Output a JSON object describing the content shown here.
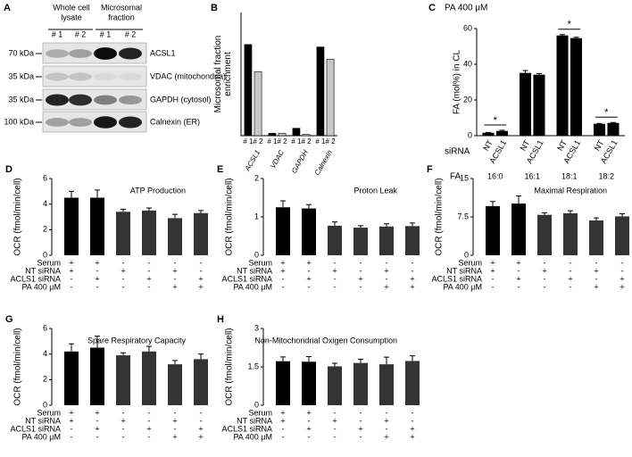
{
  "blot": {
    "panel": "A",
    "groups": [
      [
        "Whole cell",
        "lysate"
      ],
      [
        "Microsomal",
        "fraction"
      ]
    ],
    "lanes": [
      "# 1",
      "# 2",
      "# 1",
      "# 2"
    ],
    "rows": [
      {
        "marker": "70 kDa",
        "protein": "ACSL1"
      },
      {
        "marker": "35 kDa",
        "protein": "VDAC (mitochondria)"
      },
      {
        "marker": "35 kDa",
        "protein": "GAPDH (cytosol)"
      },
      {
        "marker": "100 kDa",
        "protein": "Calnexin (ER)"
      }
    ]
  },
  "chart_data": [
    {
      "type": "grouped_bar",
      "panel": "B",
      "y_label": [
        "Microsomal fraction",
        "enrichment"
      ],
      "categories": [
        "ACSL1",
        "VDAC",
        "GAPDH",
        "Calnexin"
      ],
      "series": [
        {
          "name": "# 1",
          "color": "#000000",
          "values": [
            3.7,
            0.1,
            0.3,
            3.6
          ]
        },
        {
          "name": "# 2",
          "color": "#c8c8c8",
          "values": [
            2.6,
            0.1,
            0.05,
            3.1
          ]
        }
      ],
      "ylim": [
        0,
        5
      ]
    },
    {
      "type": "grouped_bar",
      "panel": "C",
      "title": "PA 400 μM",
      "y_label": [
        "FA (mol%) in CL"
      ],
      "series_label": "siRNA",
      "category_label": "FA",
      "categories": [
        "16:0",
        "16:1",
        "18:1",
        "18:2"
      ],
      "series": [
        {
          "name": "NT",
          "color": "#000000",
          "values": [
            1.5,
            35,
            56,
            6.5
          ],
          "errors": [
            0.3,
            1.5,
            0.6,
            0.4
          ]
        },
        {
          "name": "ACSL1",
          "color": "#000000",
          "values": [
            2.5,
            34,
            54.5,
            7
          ],
          "errors": [
            0.5,
            0.8,
            0.6,
            0.4
          ]
        }
      ],
      "significance": [
        "*",
        null,
        "*",
        "*"
      ],
      "ylim": [
        0,
        60
      ],
      "yticks": [
        0,
        20,
        40,
        60
      ]
    },
    {
      "type": "bar",
      "panel": "D",
      "title": "ATP Production",
      "y_label": [
        "OCR (fmol/min/cell)"
      ],
      "values": [
        4.5,
        4.5,
        3.4,
        3.5,
        2.9,
        3.3
      ],
      "errors": [
        0.5,
        0.6,
        0.2,
        0.2,
        0.3,
        0.2
      ],
      "colors": [
        "#000000",
        "#000000",
        "#333333",
        "#333333",
        "#333333",
        "#333333"
      ],
      "condition_labels": [
        "Serum",
        "NT siRNA",
        "ACLS1 siRNA",
        "PA 400 μM"
      ],
      "conditions": [
        [
          "+",
          "+",
          "-",
          "-",
          "-",
          "-"
        ],
        [
          "+",
          "-",
          "+",
          "-",
          "+",
          "-"
        ],
        [
          "-",
          "+",
          "-",
          "+",
          "-",
          "+"
        ],
        [
          "-",
          "-",
          "-",
          "-",
          "+",
          "+"
        ]
      ],
      "ylim": [
        0,
        6
      ],
      "yticks": [
        0,
        2,
        4,
        6
      ]
    },
    {
      "type": "bar",
      "panel": "E",
      "title": "Proton Leak",
      "y_label": [
        "OCR (fmol/min/cell)"
      ],
      "values": [
        1.25,
        1.22,
        0.77,
        0.72,
        0.75,
        0.76
      ],
      "errors": [
        0.17,
        0.1,
        0.1,
        0.05,
        0.07,
        0.08
      ],
      "colors": [
        "#000000",
        "#000000",
        "#333333",
        "#333333",
        "#333333",
        "#333333"
      ],
      "condition_labels": [
        "Serum",
        "NT siRNA",
        "ACLS1 siRNA",
        "PA 400 μM"
      ],
      "conditions": [
        [
          "+",
          "+",
          "-",
          "-",
          "-",
          "-"
        ],
        [
          "+",
          "-",
          "+",
          "-",
          "+",
          "-"
        ],
        [
          "-",
          "+",
          "-",
          "+",
          "-",
          "+"
        ],
        [
          "-",
          "-",
          "-",
          "-",
          "+",
          "+"
        ]
      ],
      "ylim": [
        0,
        2
      ],
      "yticks": [
        0,
        1,
        2
      ]
    },
    {
      "type": "bar",
      "panel": "F",
      "title": "Maximal Respiration",
      "y_label": [
        "OCR (fmol/min/cell)"
      ],
      "values": [
        9.6,
        10.1,
        7.9,
        8.2,
        6.8,
        7.6
      ],
      "errors": [
        0.9,
        1.5,
        0.4,
        0.5,
        0.5,
        0.5
      ],
      "colors": [
        "#000000",
        "#000000",
        "#333333",
        "#333333",
        "#333333",
        "#333333"
      ],
      "condition_labels": [
        "Serum",
        "NT siRNA",
        "ACLS1 siRNA",
        "PA 400 μM"
      ],
      "conditions": [
        [
          "+",
          "+",
          "-",
          "-",
          "-",
          "-"
        ],
        [
          "+",
          "-",
          "+",
          "-",
          "+",
          "-"
        ],
        [
          "-",
          "+",
          "-",
          "+",
          "-",
          "+"
        ],
        [
          "-",
          "-",
          "-",
          "-",
          "+",
          "+"
        ]
      ],
      "ylim": [
        0,
        15
      ],
      "yticks": [
        0,
        7.5,
        15
      ]
    },
    {
      "type": "bar",
      "panel": "G",
      "title": "Spare Respiratory Capacity",
      "y_label": [
        "OCR (fmol/min/cell)"
      ],
      "values": [
        4.2,
        4.5,
        3.9,
        4.2,
        3.2,
        3.6
      ],
      "errors": [
        0.6,
        0.9,
        0.2,
        0.4,
        0.3,
        0.4
      ],
      "colors": [
        "#000000",
        "#000000",
        "#333333",
        "#333333",
        "#333333",
        "#333333"
      ],
      "condition_labels": [
        "Serum",
        "NT siRNA",
        "ACLS1 siRNA",
        "PA 400 μM"
      ],
      "conditions": [
        [
          "+",
          "+",
          "-",
          "-",
          "-",
          "-"
        ],
        [
          "+",
          "-",
          "+",
          "-",
          "+",
          "-"
        ],
        [
          "-",
          "+",
          "-",
          "+",
          "-",
          "+"
        ],
        [
          "-",
          "-",
          "-",
          "-",
          "+",
          "+"
        ]
      ],
      "ylim": [
        0,
        6
      ],
      "yticks": [
        0,
        2,
        4,
        6
      ]
    },
    {
      "type": "bar",
      "panel": "H",
      "title": "Non-Mitochondrial Oxigen Consumption",
      "y_label": [
        "OCR (fmol/min/cell)"
      ],
      "values": [
        1.72,
        1.7,
        1.52,
        1.65,
        1.6,
        1.73
      ],
      "errors": [
        0.17,
        0.2,
        0.12,
        0.15,
        0.28,
        0.2
      ],
      "colors": [
        "#000000",
        "#000000",
        "#333333",
        "#333333",
        "#333333",
        "#333333"
      ],
      "condition_labels": [
        "Serum",
        "NT siRNA",
        "ACLS1 siRNA",
        "PA 400 μM"
      ],
      "conditions": [
        [
          "+",
          "+",
          "-",
          "-",
          "-",
          "-"
        ],
        [
          "+",
          "-",
          "+",
          "-",
          "+",
          "-"
        ],
        [
          "-",
          "+",
          "-",
          "+",
          "-",
          "+"
        ],
        [
          "-",
          "-",
          "-",
          "-",
          "+",
          "+"
        ]
      ],
      "ylim": [
        0,
        3
      ],
      "yticks": [
        0,
        1.5,
        3
      ]
    }
  ]
}
